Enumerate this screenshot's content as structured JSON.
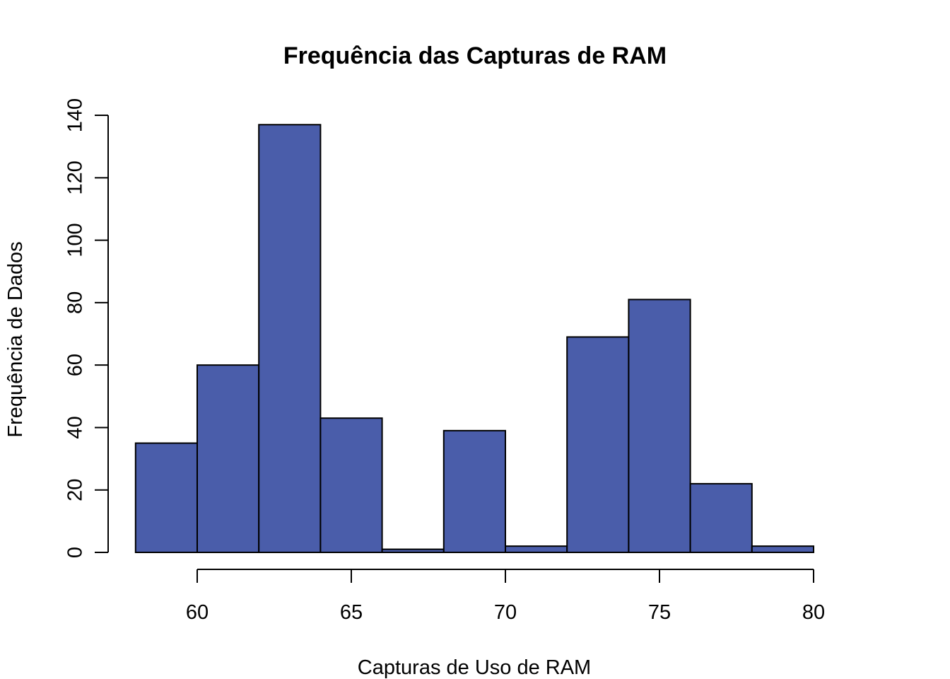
{
  "chart_data": {
    "type": "bar",
    "title": "Frequência das Capturas de RAM",
    "xlabel": "Capturas de Uso de RAM",
    "ylabel": "Frequência de Dados",
    "bins": [
      {
        "from": 58,
        "to": 60,
        "count": 35
      },
      {
        "from": 60,
        "to": 62,
        "count": 60
      },
      {
        "from": 62,
        "to": 64,
        "count": 137
      },
      {
        "from": 64,
        "to": 66,
        "count": 43
      },
      {
        "from": 66,
        "to": 68,
        "count": 1
      },
      {
        "from": 68,
        "to": 70,
        "count": 39
      },
      {
        "from": 70,
        "to": 72,
        "count": 2
      },
      {
        "from": 72,
        "to": 74,
        "count": 69
      },
      {
        "from": 74,
        "to": 76,
        "count": 81
      },
      {
        "from": 76,
        "to": 78,
        "count": 22
      },
      {
        "from": 78,
        "to": 80,
        "count": 2
      }
    ],
    "xlim": [
      58,
      80
    ],
    "ylim": [
      0,
      140
    ],
    "x_ticks": [
      60,
      65,
      70,
      75,
      80
    ],
    "y_ticks": [
      0,
      20,
      40,
      60,
      80,
      100,
      120,
      140
    ],
    "x_tick_labels": [
      "60",
      "65",
      "70",
      "75",
      "80"
    ],
    "y_tick_labels": [
      "0",
      "20",
      "40",
      "60",
      "80",
      "100",
      "120",
      "140"
    ],
    "bar_color": "#4a5daa",
    "bar_edge_color": "#000000",
    "grid": false,
    "legend": "none"
  }
}
